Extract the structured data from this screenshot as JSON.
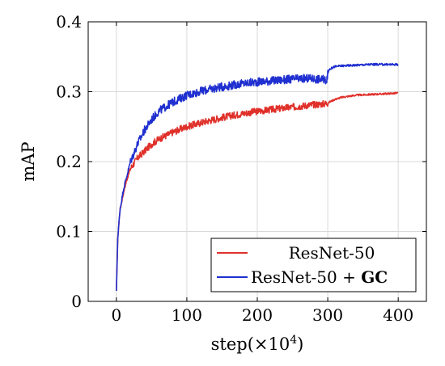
{
  "chart_data": {
    "type": "line",
    "title": "",
    "xlabel": "step(×10",
    "xlabel_sup": "4",
    "xlabel_close": ")",
    "ylabel": "mAP",
    "xlim": [
      -40,
      440
    ],
    "ylim": [
      0,
      0.4
    ],
    "xticks": [
      0,
      100,
      200,
      300,
      400
    ],
    "yticks": [
      0,
      0.1,
      0.2,
      0.3,
      0.4
    ],
    "xtick_labels": [
      "0",
      "100",
      "200",
      "300",
      "400"
    ],
    "ytick_labels": [
      "0",
      "0.1",
      "0.2",
      "0.3",
      "0.4"
    ],
    "grid": true,
    "legend_position": "bottom-right",
    "legend": {
      "resnet": "ResNet-50",
      "gc_prefix": "ResNet-50 + ",
      "gc_bold": "GC"
    },
    "series": [
      {
        "name": "ResNet-50",
        "color": "#e0302a",
        "noise": 0.005,
        "x": [
          0,
          2,
          5,
          10,
          15,
          20,
          30,
          40,
          50,
          60,
          80,
          100,
          125,
          150,
          175,
          200,
          225,
          250,
          275,
          298,
          302,
          310,
          320,
          340,
          360,
          380,
          400
        ],
        "y": [
          0.015,
          0.09,
          0.13,
          0.155,
          0.175,
          0.19,
          0.205,
          0.215,
          0.225,
          0.232,
          0.242,
          0.25,
          0.257,
          0.263,
          0.268,
          0.272,
          0.275,
          0.278,
          0.281,
          0.283,
          0.285,
          0.289,
          0.292,
          0.295,
          0.296,
          0.297,
          0.298
        ]
      },
      {
        "name": "ResNet-50 + GC",
        "color": "#1f2fd0",
        "noise": 0.006,
        "x": [
          0,
          2,
          5,
          10,
          15,
          20,
          30,
          40,
          50,
          60,
          80,
          100,
          125,
          150,
          175,
          200,
          225,
          250,
          275,
          298,
          302,
          310,
          320,
          340,
          360,
          380,
          400
        ],
        "y": [
          0.015,
          0.09,
          0.13,
          0.16,
          0.18,
          0.2,
          0.225,
          0.245,
          0.26,
          0.272,
          0.285,
          0.295,
          0.302,
          0.307,
          0.311,
          0.314,
          0.316,
          0.318,
          0.319,
          0.317,
          0.332,
          0.336,
          0.337,
          0.338,
          0.339,
          0.339,
          0.339
        ]
      }
    ]
  }
}
